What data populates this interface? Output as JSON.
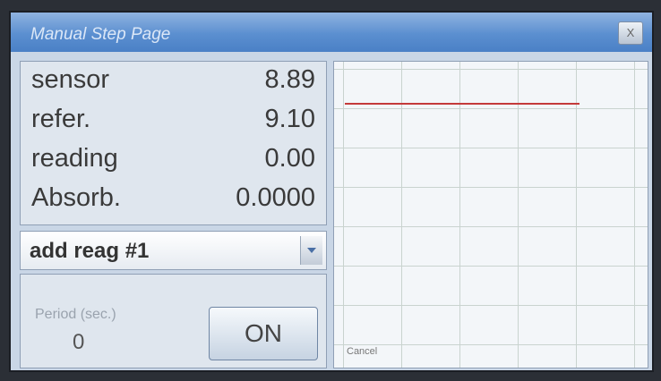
{
  "window": {
    "title": "Manual Step Page",
    "close": "X"
  },
  "readings": [
    {
      "label": "sensor",
      "value": "8.89"
    },
    {
      "label": "refer.",
      "value": "9.10"
    },
    {
      "label": "reading",
      "value": "0.00"
    },
    {
      "label": "Absorb.",
      "value": "0.0000"
    }
  ],
  "dropdown": {
    "selected": "add reag #1"
  },
  "period": {
    "label": "Period (sec.)",
    "value": "0"
  },
  "button": {
    "label": "ON"
  },
  "plot": {
    "cancel": "Cancel"
  }
}
